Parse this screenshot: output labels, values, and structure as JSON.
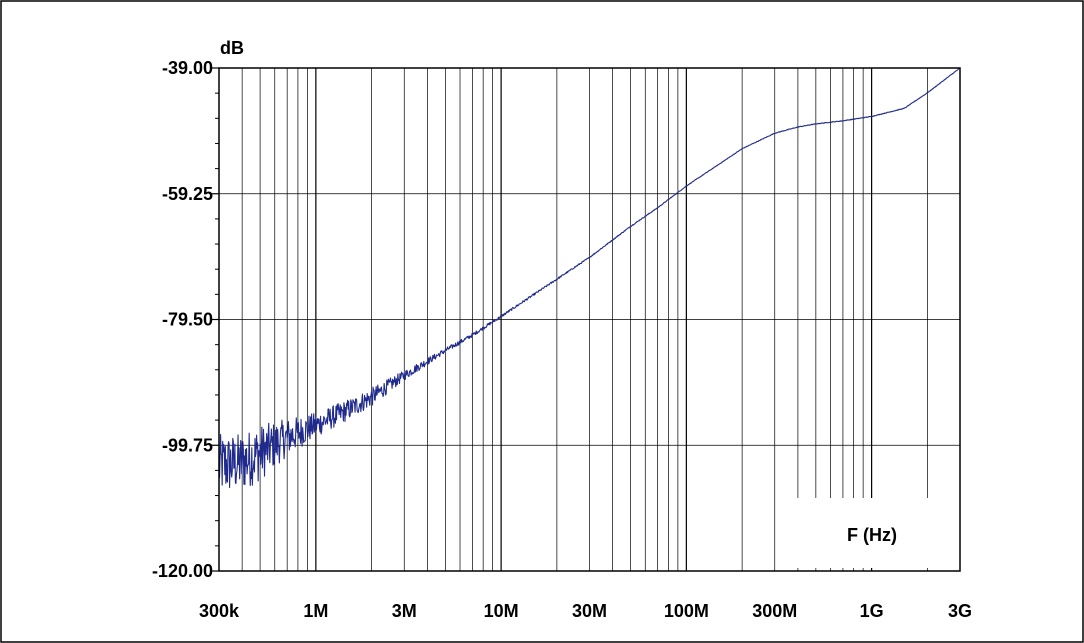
{
  "chart_data": {
    "type": "line",
    "title": "",
    "xlabel": "F (Hz)",
    "ylabel": "dB",
    "x_scale": "log",
    "x_range_hz": [
      300000,
      3000000000
    ],
    "ylim": [
      -120,
      -39
    ],
    "grid": true,
    "x_ticks": [
      {
        "value": 300000,
        "label": "300k"
      },
      {
        "value": 1000000,
        "label": "1M"
      },
      {
        "value": 3000000,
        "label": "3M"
      },
      {
        "value": 10000000,
        "label": "10M"
      },
      {
        "value": 30000000,
        "label": "30M"
      },
      {
        "value": 100000000,
        "label": "100M"
      },
      {
        "value": 300000000,
        "label": "300M"
      },
      {
        "value": 1000000000,
        "label": "1G"
      },
      {
        "value": 3000000000,
        "label": "3G"
      }
    ],
    "y_ticks": [
      {
        "value": -39.0,
        "label": "-39.00"
      },
      {
        "value": -59.25,
        "label": "-59.25"
      },
      {
        "value": -79.5,
        "label": "-79.50"
      },
      {
        "value": -99.75,
        "label": "-99.75"
      },
      {
        "value": -120.0,
        "label": "-120.00"
      }
    ],
    "series": [
      {
        "color": "#1f2a8c",
        "points": [
          [
            300000,
            -103.0
          ],
          [
            400000,
            -102.5
          ],
          [
            500000,
            -101.0
          ],
          [
            700000,
            -98.5
          ],
          [
            1000000,
            -96.5
          ],
          [
            1500000,
            -94.0
          ],
          [
            2000000,
            -92.0
          ],
          [
            3000000,
            -88.5
          ],
          [
            5000000,
            -84.5
          ],
          [
            7000000,
            -82.0
          ],
          [
            10000000,
            -79.0
          ],
          [
            20000000,
            -73.0
          ],
          [
            30000000,
            -69.5
          ],
          [
            50000000,
            -64.5
          ],
          [
            70000000,
            -61.5
          ],
          [
            100000000,
            -58.0
          ],
          [
            150000000,
            -54.5
          ],
          [
            200000000,
            -52.0
          ],
          [
            300000000,
            -49.5
          ],
          [
            400000000,
            -48.5
          ],
          [
            500000000,
            -48.0
          ],
          [
            700000000,
            -47.5
          ],
          [
            1000000000,
            -46.8
          ],
          [
            1500000000,
            -45.5
          ],
          [
            2000000000,
            -43.0
          ],
          [
            3000000000,
            -39.0
          ]
        ],
        "noise_db": [
          [
            300000,
            5.0
          ],
          [
            500000,
            4.5
          ],
          [
            700000,
            3.0
          ],
          [
            1000000,
            2.0
          ],
          [
            2000000,
            1.5
          ],
          [
            3000000,
            0.8
          ],
          [
            5000000,
            0.4
          ],
          [
            10000000,
            0.2
          ],
          [
            30000000,
            0.1
          ],
          [
            100000000,
            0.05
          ],
          [
            3000000000,
            0.05
          ]
        ]
      }
    ]
  }
}
